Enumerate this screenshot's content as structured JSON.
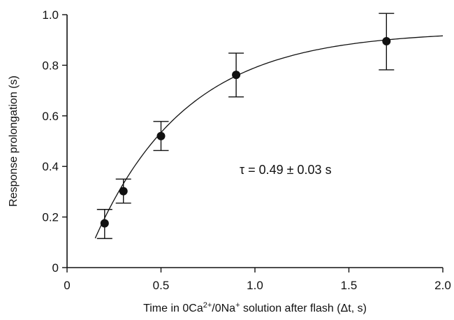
{
  "chart_data": {
    "type": "scatter",
    "xlabel_parts": [
      "Time in 0Ca",
      "2+",
      "/0Na",
      "+",
      " solution after flash (Δt, s)"
    ],
    "ylabel": "Response prolongation (s)",
    "xlim": [
      0,
      2.0
    ],
    "ylim": [
      0,
      1.0
    ],
    "x_ticks": [
      0,
      0.5,
      1.0,
      1.5,
      2.0
    ],
    "x_tick_labels": [
      "0",
      "0.5",
      "1.0",
      "1.5",
      "2.0"
    ],
    "y_ticks": [
      0,
      0.2,
      0.4,
      0.6,
      0.8,
      1.0
    ],
    "y_tick_labels": [
      "0",
      "0.2",
      "0.4",
      "0.6",
      "0.8",
      "1.0"
    ],
    "grid": false,
    "points": [
      {
        "x": 0.2,
        "y": 0.175,
        "err_low": 0.115,
        "err_high": 0.23
      },
      {
        "x": 0.3,
        "y": 0.302,
        "err_low": 0.255,
        "err_high": 0.35
      },
      {
        "x": 0.5,
        "y": 0.52,
        "err_low": 0.463,
        "err_high": 0.578
      },
      {
        "x": 0.9,
        "y": 0.762,
        "err_low": 0.675,
        "err_high": 0.848
      },
      {
        "x": 1.7,
        "y": 0.895,
        "err_low": 0.782,
        "err_high": 1.005
      }
    ],
    "fit": {
      "model": "exponential rise",
      "tau": 0.49,
      "ymax": 0.935,
      "x0": 0.085,
      "x_range": [
        0.15,
        2.0
      ]
    },
    "annotation": "τ = 0.49 ± 0.03 s"
  }
}
